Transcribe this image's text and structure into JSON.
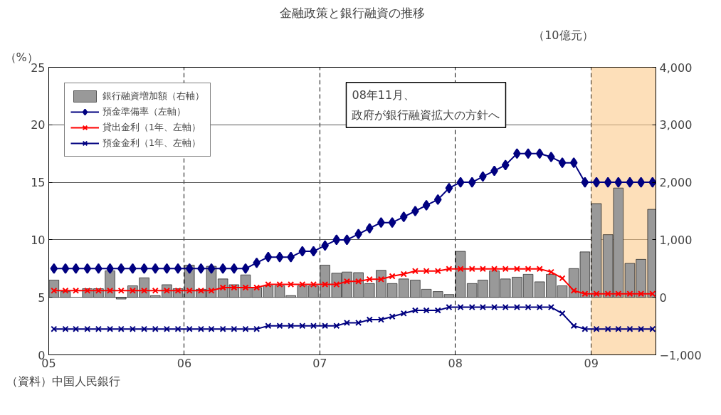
{
  "chart_data": {
    "type": "line",
    "title": "金融政策と銀行融資の推移",
    "ylabel": "（%）",
    "y2label": "（10億元）",
    "x": [
      "2005-01-15",
      "2005-02-15",
      "2005-03-15",
      "2005-04-15",
      "2005-05-15",
      "2005-06-15",
      "2005-07-15",
      "2005-08-15",
      "2005-09-15",
      "2005-10-15",
      "2005-11-15",
      "2005-12-15",
      "2006-01-15",
      "2006-02-15",
      "2006-03-15",
      "2006-04-15",
      "2006-05-15",
      "2006-06-15",
      "2006-07-15",
      "2006-08-15",
      "2006-09-15",
      "2006-10-15",
      "2006-11-15",
      "2006-12-15",
      "2007-01-15",
      "2007-02-15",
      "2007-03-15",
      "2007-04-15",
      "2007-05-15",
      "2007-06-15",
      "2007-07-15",
      "2007-08-15",
      "2007-09-15",
      "2007-10-15",
      "2007-11-15",
      "2007-12-15",
      "2008-01-15",
      "2008-02-15",
      "2008-03-15",
      "2008-04-15",
      "2008-05-15",
      "2008-06-15",
      "2008-07-15",
      "2008-08-15",
      "2008-09-15",
      "2008-10-15",
      "2008-11-15",
      "2008-12-15",
      "2009-01-15",
      "2009-02-15",
      "2009-03-15",
      "2009-04-15",
      "2009-05-15",
      "2009-06-15"
    ],
    "xlim": [
      "2005-01-01",
      "2009-06-24"
    ],
    "xticks": [
      {
        "value": "2005-01-01",
        "label": "05"
      },
      {
        "value": "2006-01-01",
        "label": "06"
      },
      {
        "value": "2007-01-01",
        "label": "07"
      },
      {
        "value": "2008-01-01",
        "label": "08"
      },
      {
        "value": "2009-01-01",
        "label": "09"
      }
    ],
    "ylim": [
      0,
      25
    ],
    "yticks": [
      0,
      5,
      10,
      15,
      20,
      25
    ],
    "y2lim": [
      -1000,
      4000
    ],
    "y2ticks": [
      {
        "value": -1000,
        "label": "−1,000"
      },
      0,
      {
        "value": 1000,
        "label": "1,000"
      },
      {
        "value": 2000,
        "label": "2,000"
      },
      {
        "value": 3000,
        "label": "3,000"
      },
      {
        "value": 4000,
        "label": "4,000"
      }
    ],
    "series": [
      {
        "name": "銀行融資増加額（右軸）",
        "type": "bar",
        "axis": "y2",
        "color": "#999999",
        "values": [
          300,
          100,
          null,
          150,
          150,
          460,
          -30,
          200,
          340,
          30,
          220,
          150,
          560,
          140,
          540,
          320,
          220,
          390,
          170,
          200,
          200,
          30,
          200,
          200,
          560,
          420,
          440,
          430,
          240,
          470,
          240,
          320,
          300,
          140,
          100,
          50,
          800,
          240,
          300,
          460,
          320,
          350,
          400,
          270,
          400,
          200,
          500,
          790,
          1630,
          1090,
          1900,
          590,
          660,
          1530
        ]
      },
      {
        "name": "預金準備率（左軸）",
        "marker": "diamond",
        "color": "#000080",
        "values": [
          7.5,
          7.5,
          7.5,
          7.5,
          7.5,
          7.5,
          7.5,
          7.5,
          7.5,
          7.5,
          7.5,
          7.5,
          7.5,
          7.5,
          7.5,
          7.5,
          7.5,
          7.5,
          8.0,
          8.5,
          8.5,
          8.5,
          9.0,
          9.0,
          9.5,
          10,
          10,
          10.5,
          11,
          11.5,
          11.5,
          12,
          12.5,
          13,
          13.5,
          14.5,
          15,
          15,
          15.5,
          16,
          16.5,
          17.5,
          17.5,
          17.5,
          17.2,
          16.7,
          16.7,
          15,
          15,
          15,
          15,
          15,
          15,
          15
        ]
      },
      {
        "name": "貸出金利（1年、左軸）",
        "marker": "cross",
        "color": "#ff0000",
        "values": [
          5.58,
          5.58,
          5.58,
          5.58,
          5.58,
          5.58,
          5.58,
          5.58,
          5.58,
          5.58,
          5.58,
          5.58,
          5.58,
          5.58,
          5.58,
          5.85,
          5.85,
          5.85,
          5.85,
          6.12,
          6.12,
          6.12,
          6.12,
          6.12,
          6.12,
          6.12,
          6.39,
          6.39,
          6.57,
          6.57,
          6.84,
          7.02,
          7.29,
          7.29,
          7.29,
          7.47,
          7.47,
          7.47,
          7.47,
          7.47,
          7.47,
          7.47,
          7.47,
          7.47,
          7.2,
          6.66,
          5.58,
          5.31,
          5.31,
          5.31,
          5.31,
          5.31,
          5.31,
          5.31
        ]
      },
      {
        "name": "預金金利（1年、左軸）",
        "marker": "cross",
        "color": "#000080",
        "values": [
          2.25,
          2.25,
          2.25,
          2.25,
          2.25,
          2.25,
          2.25,
          2.25,
          2.25,
          2.25,
          2.25,
          2.25,
          2.25,
          2.25,
          2.25,
          2.25,
          2.25,
          2.25,
          2.25,
          2.52,
          2.52,
          2.52,
          2.52,
          2.52,
          2.52,
          2.52,
          2.79,
          2.79,
          3.06,
          3.06,
          3.33,
          3.6,
          3.87,
          3.87,
          3.87,
          4.14,
          4.14,
          4.14,
          4.14,
          4.14,
          4.14,
          4.14,
          4.14,
          4.14,
          4.14,
          3.6,
          2.52,
          2.25,
          2.25,
          2.25,
          2.25,
          2.25,
          2.25,
          2.25
        ]
      }
    ],
    "bands": [
      {
        "axis": "x",
        "from": "2009-01-01",
        "to": "2009-06-24",
        "color": "#fbc98a"
      }
    ],
    "annotations": [
      "08年11月、政府が銀行融資拡大の方針へ",
      "（資料）中国人民銀行"
    ],
    "grid": true,
    "legend": "top left"
  }
}
